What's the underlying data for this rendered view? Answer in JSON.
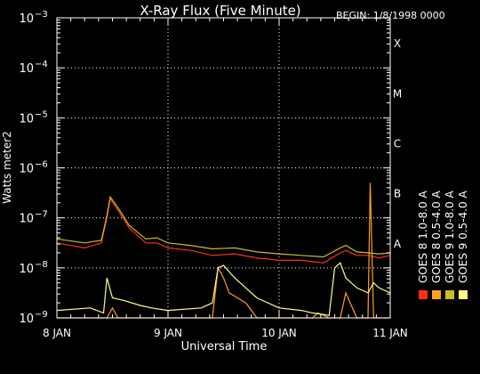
{
  "chart_data": {
    "type": "line",
    "title": "X-Ray Flux (Five Minute)",
    "begin_label": "BEGIN: 1/8/1998 0000",
    "xlabel": "Universal Time",
    "ylabel": "Watts meter2",
    "y_scale": "log",
    "ylim": [
      1e-09,
      0.001
    ],
    "xlim": [
      0,
      3
    ],
    "x_ticks": [
      {
        "value": 0,
        "label": "8 JAN"
      },
      {
        "value": 1,
        "label": "9 JAN"
      },
      {
        "value": 2,
        "label": "10 JAN"
      },
      {
        "value": 3,
        "label": "11 JAN"
      }
    ],
    "y_ticks": [
      {
        "exp": -9,
        "base": "10",
        "sup": "−9"
      },
      {
        "exp": -8,
        "base": "10",
        "sup": "−8"
      },
      {
        "exp": -7,
        "base": "10",
        "sup": "−7"
      },
      {
        "exp": -6,
        "base": "10",
        "sup": "−6"
      },
      {
        "exp": -5,
        "base": "10",
        "sup": "−5"
      },
      {
        "exp": -4,
        "base": "10",
        "sup": "−4"
      },
      {
        "exp": -3,
        "base": "10",
        "sup": "−3"
      }
    ],
    "flare_classes": [
      {
        "label": "A",
        "exp": -7.5
      },
      {
        "label": "B",
        "exp": -6.5
      },
      {
        "label": "C",
        "exp": -5.5
      },
      {
        "label": "M",
        "exp": -4.5
      },
      {
        "label": "X",
        "exp": -3.5
      }
    ],
    "dashed_levels": [
      -8,
      -7,
      -6,
      -5,
      -4
    ],
    "grid_days": [
      1,
      2
    ],
    "series": [
      {
        "name": "GOES 8 1.0-8.0 A",
        "color": "#ff3010",
        "x": [
          0,
          0.25,
          0.4,
          0.45,
          0.48,
          0.55,
          0.65,
          0.8,
          0.9,
          1.0,
          1.2,
          1.4,
          1.6,
          1.8,
          2.0,
          2.2,
          2.4,
          2.55,
          2.6,
          2.7,
          2.8,
          2.9,
          3.0
        ],
        "y": [
          -7.5,
          -7.6,
          -7.5,
          -7.0,
          -6.62,
          -6.85,
          -7.2,
          -7.5,
          -7.5,
          -7.6,
          -7.65,
          -7.75,
          -7.72,
          -7.8,
          -7.85,
          -7.85,
          -7.9,
          -7.7,
          -7.65,
          -7.75,
          -7.75,
          -7.8,
          -7.75
        ]
      },
      {
        "name": "GOES 8 0.5-4.0 A",
        "color": "#ffa020",
        "x": [
          0,
          0.3,
          0.45,
          0.5,
          0.55,
          0.7,
          1.0,
          1.3,
          1.4,
          1.45,
          1.5,
          1.55,
          1.7,
          1.8,
          2.0,
          2.3,
          2.35,
          2.45,
          2.55,
          2.6,
          2.7,
          2.8,
          2.82,
          2.85,
          3.0
        ],
        "y": [
          -9,
          -9,
          -9,
          -8.8,
          -9,
          -9,
          -9,
          -9,
          -9,
          -8.0,
          -8.2,
          -8.5,
          -8.7,
          -9,
          -9,
          -9,
          -8.9,
          -9,
          -9,
          -8.5,
          -9,
          -9,
          -6.3,
          -9,
          -9
        ]
      },
      {
        "name": "GOES 9 1.0-8.0 A",
        "color": "#c8c020",
        "x": [
          0,
          0.25,
          0.4,
          0.45,
          0.48,
          0.55,
          0.65,
          0.8,
          0.9,
          1.0,
          1.2,
          1.4,
          1.6,
          1.8,
          2.0,
          2.2,
          2.4,
          2.55,
          2.6,
          2.7,
          2.8,
          2.9,
          3.0
        ],
        "y": [
          -7.42,
          -7.5,
          -7.45,
          -6.95,
          -6.58,
          -6.8,
          -7.15,
          -7.42,
          -7.4,
          -7.5,
          -7.55,
          -7.62,
          -7.6,
          -7.68,
          -7.72,
          -7.75,
          -7.78,
          -7.6,
          -7.55,
          -7.68,
          -7.7,
          -7.72,
          -7.7
        ]
      },
      {
        "name": "GOES 9 0.5-4.0 A",
        "color": "#ffff80",
        "x": [
          0,
          0.3,
          0.42,
          0.45,
          0.5,
          0.6,
          0.75,
          0.85,
          1.0,
          1.3,
          1.4,
          1.45,
          1.5,
          1.6,
          1.7,
          1.8,
          2.0,
          2.2,
          2.3,
          2.45,
          2.5,
          2.55,
          2.6,
          2.7,
          2.8,
          2.85,
          2.9,
          3.0
        ],
        "y": [
          -8.85,
          -8.8,
          -8.9,
          -8.2,
          -8.6,
          -8.65,
          -8.75,
          -8.8,
          -8.85,
          -8.8,
          -8.7,
          -8.0,
          -7.95,
          -8.2,
          -8.4,
          -8.6,
          -8.8,
          -8.85,
          -8.9,
          -8.95,
          -8.0,
          -7.9,
          -8.2,
          -8.4,
          -8.5,
          -8.3,
          -8.4,
          -8.5
        ]
      }
    ]
  }
}
